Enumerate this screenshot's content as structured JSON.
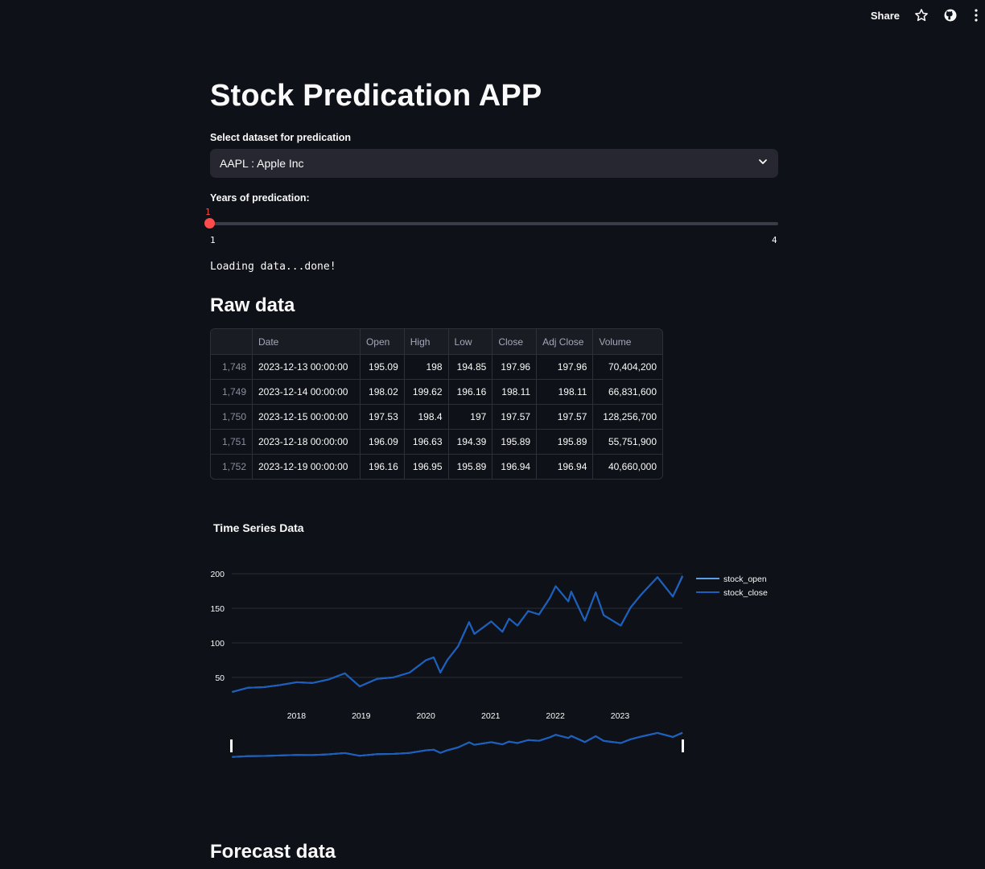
{
  "toolbar": {
    "share_label": "Share",
    "icons": [
      "star-icon",
      "github-icon",
      "more-icon"
    ]
  },
  "app": {
    "title": "Stock Predication APP"
  },
  "dataset_select": {
    "label": "Select dataset for predication",
    "value": "AAPL : Apple Inc"
  },
  "years_slider": {
    "label": "Years of predication:",
    "value": "1",
    "min": "1",
    "max": "4"
  },
  "status": {
    "loading_text": "Loading data...done!"
  },
  "raw_data": {
    "heading": "Raw data",
    "columns": [
      "",
      "Date",
      "Open",
      "High",
      "Low",
      "Close",
      "Adj Close",
      "Volume"
    ],
    "rows": [
      [
        "1,748",
        "2023-12-13 00:00:00",
        "195.09",
        "198",
        "194.85",
        "197.96",
        "197.96",
        "70,404,200"
      ],
      [
        "1,749",
        "2023-12-14 00:00:00",
        "198.02",
        "199.62",
        "196.16",
        "198.11",
        "198.11",
        "66,831,600"
      ],
      [
        "1,750",
        "2023-12-15 00:00:00",
        "197.53",
        "198.4",
        "197",
        "197.57",
        "197.57",
        "128,256,700"
      ],
      [
        "1,751",
        "2023-12-18 00:00:00",
        "196.09",
        "196.63",
        "194.39",
        "195.89",
        "195.89",
        "55,751,900"
      ],
      [
        "1,752",
        "2023-12-19 00:00:00",
        "196.16",
        "196.95",
        "195.89",
        "196.94",
        "196.94",
        "40,660,000"
      ]
    ]
  },
  "forecast": {
    "heading": "Forecast data"
  },
  "chart_data": {
    "type": "line",
    "title": "Time Series Data",
    "xlabel": "",
    "ylabel": "",
    "x_tick_labels": [
      "2018",
      "2019",
      "2020",
      "2021",
      "2022",
      "2023"
    ],
    "y_tick_labels": [
      "50",
      "100",
      "150",
      "200"
    ],
    "xlim": [
      "2017-01-01",
      "2023-12-19"
    ],
    "ylim": [
      22,
      200
    ],
    "grid": true,
    "legend_position": "right",
    "range_slider": true,
    "colors": {
      "stock_open": "#5a9ee8",
      "stock_close": "#1a5fbf"
    },
    "series": [
      {
        "name": "stock_open",
        "x": [
          "2017-01-03",
          "2017-04-01",
          "2017-07-01",
          "2017-10-01",
          "2018-01-02",
          "2018-04-01",
          "2018-07-01",
          "2018-10-01",
          "2018-12-24",
          "2019-04-01",
          "2019-07-01",
          "2019-10-01",
          "2020-01-02",
          "2020-02-15",
          "2020-03-23",
          "2020-05-01",
          "2020-07-01",
          "2020-09-01",
          "2020-10-01",
          "2021-01-04",
          "2021-03-08",
          "2021-04-15",
          "2021-06-01",
          "2021-08-01",
          "2021-10-01",
          "2021-12-01",
          "2022-01-03",
          "2022-03-15",
          "2022-04-01",
          "2022-06-16",
          "2022-08-17",
          "2022-10-01",
          "2023-01-05",
          "2023-03-01",
          "2023-05-01",
          "2023-07-31",
          "2023-10-26",
          "2023-12-19"
        ],
        "values": [
          29,
          35,
          36,
          39,
          43,
          42,
          47,
          56,
          37,
          48,
          50,
          57,
          75,
          79,
          57,
          75,
          95,
          130,
          113,
          131,
          116,
          135,
          125,
          146,
          141,
          165,
          182,
          160,
          174,
          132,
          173,
          140,
          125,
          151,
          170,
          195,
          167,
          196
        ]
      },
      {
        "name": "stock_close",
        "x": [
          "2017-01-03",
          "2017-04-01",
          "2017-07-01",
          "2017-10-01",
          "2018-01-02",
          "2018-04-01",
          "2018-07-01",
          "2018-10-01",
          "2018-12-24",
          "2019-04-01",
          "2019-07-01",
          "2019-10-01",
          "2020-01-02",
          "2020-02-15",
          "2020-03-23",
          "2020-05-01",
          "2020-07-01",
          "2020-09-01",
          "2020-10-01",
          "2021-01-04",
          "2021-03-08",
          "2021-04-15",
          "2021-06-01",
          "2021-08-01",
          "2021-10-01",
          "2021-12-01",
          "2022-01-03",
          "2022-03-15",
          "2022-04-01",
          "2022-06-16",
          "2022-08-17",
          "2022-10-01",
          "2023-01-05",
          "2023-03-01",
          "2023-05-01",
          "2023-07-31",
          "2023-10-26",
          "2023-12-19"
        ],
        "values": [
          29,
          35,
          36,
          39,
          43,
          42,
          47,
          56,
          37,
          48,
          50,
          57,
          75,
          79,
          57,
          75,
          95,
          130,
          113,
          131,
          116,
          135,
          125,
          146,
          141,
          165,
          182,
          160,
          174,
          132,
          173,
          140,
          125,
          151,
          170,
          195,
          167,
          197
        ]
      }
    ]
  }
}
